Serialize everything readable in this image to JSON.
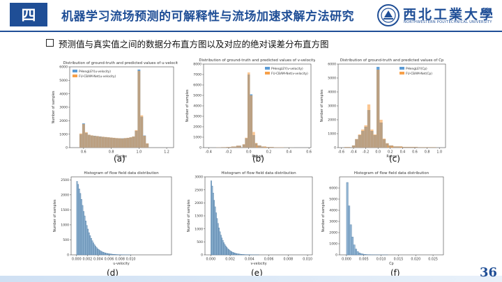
{
  "header": {
    "section_badge": "四",
    "title": "机器学习流场预测的可解释性与流场加速求解方法研究",
    "logo_text": "西北工業大學",
    "logo_sub": "NORTHWESTERN POLYTECHNICAL UNIVERSITY"
  },
  "subtitle": "预测值与真实值之间的数据分布直方图以及对应的绝对误差分布直方图",
  "page_number": "36",
  "colors": {
    "brand": "#1f4e96",
    "blue": "#5b9bd5",
    "orange": "#f6a04a",
    "overlap": "#a38a6b",
    "hist": "#93b6d4"
  },
  "chart_data": [
    {
      "caption": "(a)",
      "type": "bar",
      "title": "Distribution of ground-truth and predicted values of u-velocity",
      "xlabel": "Range",
      "ylabel": "Number of samples",
      "legend": [
        "PHengLEY(u-velocity)",
        "FU-CBAM-Net(u-velocity)"
      ],
      "legend_position": "top-left",
      "xlim": [
        0.5,
        1.25
      ],
      "ylim": [
        0,
        6000
      ],
      "xticks": [
        "0.6",
        "0.8",
        "1.0",
        "1.2"
      ],
      "xtick_values": [
        0.6,
        0.8,
        1.0,
        1.2
      ],
      "yticks": [
        "0",
        "1000",
        "2000",
        "3000",
        "4000",
        "5000",
        "6000"
      ],
      "ytick_values": [
        0,
        1000,
        2000,
        3000,
        4000,
        5000,
        6000
      ],
      "x": [
        0.58,
        0.6,
        0.62,
        0.64,
        0.66,
        0.68,
        0.7,
        0.72,
        0.74,
        0.76,
        0.78,
        0.8,
        0.82,
        0.84,
        0.86,
        0.88,
        0.9,
        0.92,
        0.94,
        0.96,
        0.98,
        1.0,
        1.02,
        1.04,
        1.06
      ],
      "series": [
        {
          "name": "PHengLEY(u-velocity)",
          "values": [
            1000,
            1800,
            1100,
            950,
            900,
            880,
            850,
            830,
            800,
            780,
            760,
            740,
            720,
            700,
            690,
            690,
            700,
            720,
            760,
            820,
            1250,
            5800,
            2300,
            900,
            300
          ]
        },
        {
          "name": "FU-CBAM-Net(u-velocity)",
          "values": [
            1050,
            1750,
            1150,
            960,
            910,
            870,
            860,
            820,
            810,
            790,
            770,
            750,
            730,
            710,
            700,
            680,
            710,
            730,
            770,
            830,
            1300,
            5700,
            2400,
            880,
            320
          ]
        }
      ]
    },
    {
      "caption": "(b)",
      "type": "bar",
      "title": "Distribution of ground-truth and predicted values of v-velocity",
      "xlabel": "Range",
      "ylabel": "Number of samples",
      "legend": [
        "PHengLEY(v-velocity)",
        "FU-CBAM-Net(v-velocity)"
      ],
      "legend_position": "top-right",
      "xlim": [
        -0.45,
        0.62
      ],
      "ylim": [
        0,
        8000
      ],
      "xticks": [
        "-0.4",
        "-0.2",
        "0.0",
        "0.2",
        "0.4",
        "0.6"
      ],
      "xtick_values": [
        -0.4,
        -0.2,
        0.0,
        0.2,
        0.4,
        0.6
      ],
      "yticks": [
        "0",
        "1000",
        "2000",
        "3000",
        "4000",
        "5000",
        "6000",
        "7000",
        "8000"
      ],
      "ytick_values": [
        0,
        1000,
        2000,
        3000,
        4000,
        5000,
        6000,
        7000,
        8000
      ],
      "x": [
        -0.3,
        -0.25,
        -0.2,
        -0.15,
        -0.1,
        -0.05,
        -0.025,
        0.0,
        0.025,
        0.05,
        0.075,
        0.1,
        0.15,
        0.2,
        0.3,
        0.4
      ],
      "series": [
        {
          "name": "PHengLEY(v-velocity)",
          "values": [
            20,
            40,
            60,
            100,
            180,
            300,
            900,
            7000,
            5100,
            1200,
            400,
            200,
            100,
            60,
            30,
            10
          ]
        },
        {
          "name": "FU-CBAM-Net(v-velocity)",
          "values": [
            25,
            45,
            65,
            110,
            190,
            320,
            950,
            7200,
            5000,
            1500,
            450,
            210,
            110,
            65,
            35,
            12
          ]
        }
      ]
    },
    {
      "caption": "(c)",
      "type": "bar",
      "title": "Distribution of ground-truth and predicted values of Cp",
      "xlabel": "Range",
      "ylabel": "Number of samples",
      "legend": [
        "PHengLEY(Cp)",
        "FU-CBAM-Net(Cp)"
      ],
      "legend_position": "top-right",
      "xlim": [
        -0.65,
        1.1
      ],
      "ylim": [
        0,
        6000
      ],
      "xticks": [
        "-0.6",
        "-0.4",
        "-0.2",
        "0.0",
        "0.2",
        "0.4",
        "0.6",
        "0.8",
        "1.0"
      ],
      "xtick_values": [
        -0.6,
        -0.4,
        -0.2,
        0.0,
        0.2,
        0.4,
        0.6,
        0.8,
        1.0
      ],
      "yticks": [
        "0",
        "1000",
        "2000",
        "3000",
        "4000",
        "5000",
        "6000"
      ],
      "ytick_values": [
        0,
        1000,
        2000,
        3000,
        4000,
        5000,
        6000
      ],
      "x": [
        -0.5,
        -0.4,
        -0.35,
        -0.3,
        -0.25,
        -0.2,
        -0.15,
        -0.1,
        -0.05,
        0.0,
        0.05,
        0.1,
        0.15,
        0.2,
        0.3,
        0.5,
        0.8
      ],
      "series": [
        {
          "name": "PHengLEY(Cp)",
          "values": [
            40,
            150,
            600,
            900,
            1200,
            1500,
            2700,
            1200,
            900,
            5800,
            1800,
            600,
            300,
            150,
            80,
            50,
            30
          ]
        },
        {
          "name": "FU-CBAM-Net(Cp)",
          "values": [
            45,
            160,
            620,
            950,
            1300,
            1600,
            3100,
            1300,
            950,
            5600,
            2000,
            650,
            320,
            160,
            90,
            55,
            35
          ]
        }
      ]
    },
    {
      "caption": "(d)",
      "type": "bar",
      "title": "Histogram of flow field data distribution",
      "xlabel": "u-velocity",
      "ylabel": "Number of samples",
      "xlim": [
        -0.001,
        0.0175
      ],
      "ylim": [
        0,
        2600
      ],
      "xticks": [
        "0.000",
        "0.002",
        "0.004",
        "0.006",
        "0.008",
        "0.010"
      ],
      "xtick_values": [
        0.0,
        0.002,
        0.004,
        0.006,
        0.008,
        0.01
      ],
      "yticks": [
        "0",
        "500",
        "1000",
        "1500",
        "2000",
        "2500"
      ],
      "ytick_values": [
        0,
        500,
        1000,
        1500,
        2000,
        2500
      ],
      "bin_width": 0.0002,
      "bin_start": 0.0,
      "values": [
        2450,
        2350,
        2200,
        2050,
        1850,
        1650,
        1450,
        1300,
        1130,
        980,
        860,
        740,
        640,
        550,
        470,
        400,
        340,
        290,
        245,
        205,
        175,
        148,
        125,
        105,
        90,
        76,
        64,
        54,
        46,
        39,
        33,
        28,
        24,
        20,
        17,
        14,
        12,
        10,
        8,
        7,
        6,
        5,
        4,
        3,
        3,
        2,
        2,
        2,
        1,
        1
      ]
    },
    {
      "caption": "(e)",
      "type": "bar",
      "title": "Histogram of flow field data distribution",
      "xlabel": "v-velocity",
      "ylabel": "Number of samples",
      "xlim": [
        -0.0006,
        0.0105
      ],
      "ylim": [
        0,
        3000
      ],
      "xticks": [
        "0.000",
        "0.002",
        "0.004",
        "0.006",
        "0.008",
        "0.010"
      ],
      "xtick_values": [
        0.0,
        0.002,
        0.004,
        0.006,
        0.008,
        0.01
      ],
      "yticks": [
        "0",
        "500",
        "1000",
        "1500",
        "2000",
        "2500",
        "3000"
      ],
      "ytick_values": [
        0,
        500,
        1000,
        1500,
        2000,
        2500,
        3000
      ],
      "bin_width": 0.0001,
      "bin_start": 0.0,
      "values": [
        2850,
        2650,
        2380,
        2100,
        1850,
        1620,
        1400,
        1210,
        1040,
        890,
        760,
        650,
        555,
        470,
        400,
        340,
        288,
        244,
        206,
        174,
        147,
        124,
        104,
        88,
        74,
        62,
        52,
        44,
        37,
        31,
        26,
        22,
        18,
        15,
        13,
        11,
        9,
        8,
        7,
        6,
        5,
        4,
        3,
        3,
        2,
        2,
        2,
        1,
        1,
        1
      ]
    },
    {
      "caption": "(f)",
      "type": "bar",
      "title": "Histogram of flow field data distribution",
      "xlabel": "Cp",
      "ylabel": "Number of samples",
      "xlim": [
        -0.002,
        0.028
      ],
      "ylim": [
        0,
        7000
      ],
      "xticks": [
        "0.000",
        "0.005",
        "0.010",
        "0.015",
        "0.020",
        "0.025"
      ],
      "xtick_values": [
        0.0,
        0.005,
        0.01,
        0.015,
        0.02,
        0.025
      ],
      "yticks": [
        "0",
        "1000",
        "2000",
        "3000",
        "4000",
        "5000",
        "6000"
      ],
      "ytick_values": [
        0,
        1000,
        2000,
        3000,
        4000,
        5000,
        6000
      ],
      "bin_width": 0.0005,
      "bin_start": 0.0,
      "values": [
        6500,
        4400,
        2700,
        1600,
        900,
        520,
        300,
        180,
        110,
        70,
        45,
        30,
        20,
        14,
        10,
        7,
        5,
        4,
        3,
        2,
        2,
        1,
        1,
        1
      ]
    }
  ]
}
